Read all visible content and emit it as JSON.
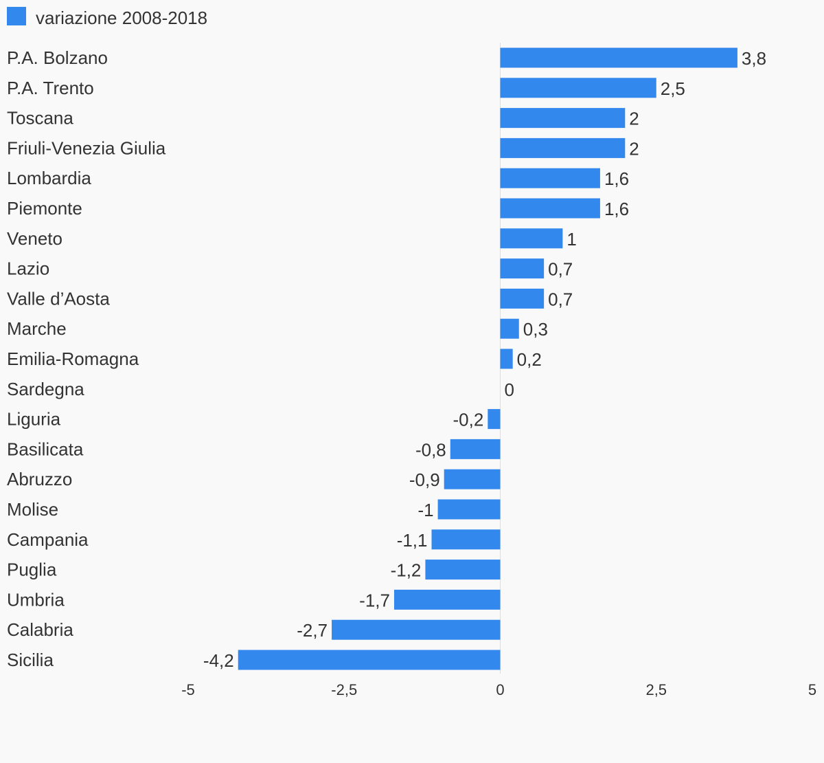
{
  "chart_data": {
    "type": "bar",
    "orientation": "horizontal",
    "legend": {
      "position": "top-left"
    },
    "series": [
      {
        "name": "variazione 2008-2018",
        "color": "#3388ee",
        "values": [
          3.8,
          2.5,
          2,
          2,
          1.6,
          1.6,
          1,
          0.7,
          0.7,
          0.3,
          0.2,
          0,
          -0.2,
          -0.8,
          -0.9,
          -1,
          -1.1,
          -1.2,
          -1.7,
          -2.7,
          -4.2
        ],
        "value_labels": [
          "3,8",
          "2,5",
          "2",
          "2",
          "1,6",
          "1,6",
          "1",
          "0,7",
          "0,7",
          "0,3",
          "0,2",
          "0",
          "-0,2",
          "-0,8",
          "-0,9",
          "-1",
          "-1,1",
          "-1,2",
          "-1,7",
          "-2,7",
          "-4,2"
        ]
      }
    ],
    "categories": [
      "P.A. Bolzano",
      "P.A. Trento",
      "Toscana",
      "Friuli-Venezia Giulia",
      "Lombardia",
      "Piemonte",
      "Veneto",
      "Lazio",
      "Valle d’Aosta",
      "Marche",
      "Emilia-Romagna",
      "Sardegna",
      "Liguria",
      "Basilicata",
      "Abruzzo",
      "Molise",
      "Campania",
      "Puglia",
      "Umbria",
      "Calabria",
      "Sicilia"
    ],
    "xlim": [
      -5,
      5
    ],
    "xticks": [
      -5,
      -2.5,
      0,
      2.5,
      5
    ],
    "xtick_labels": [
      "-5",
      "-2,5",
      "0",
      "2,5",
      "5"
    ],
    "grid": false
  }
}
